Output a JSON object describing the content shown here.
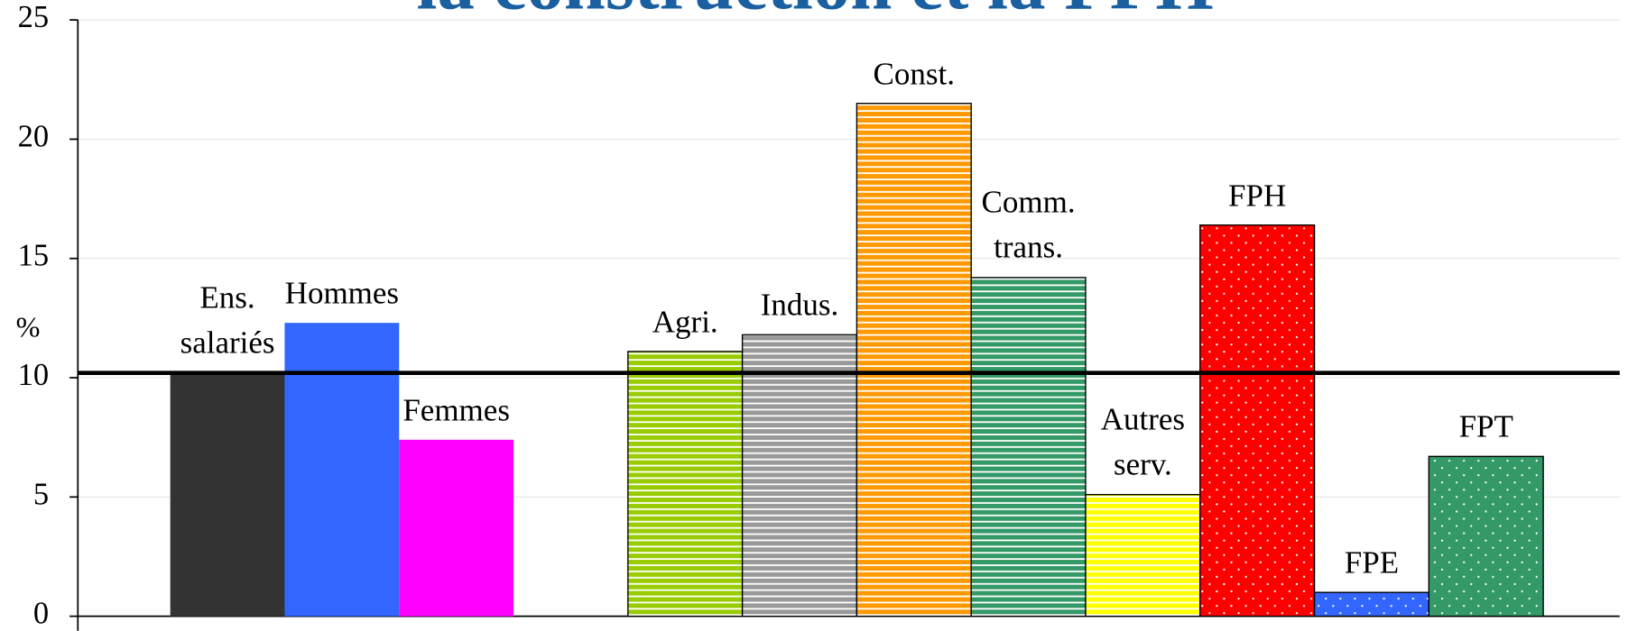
{
  "chart_data": {
    "type": "bar",
    "title": "la construction et la FPH",
    "y_label": "%",
    "categories": [
      "Ens.\nsalariés",
      "Hommes",
      "Femmes",
      null,
      "Agri.",
      "Indus.",
      "Const.",
      "Comm.\ntrans.",
      "Autres\nserv.",
      "FPH",
      "FPE",
      "FPT"
    ],
    "values": [
      10.2,
      12.3,
      7.4,
      null,
      11.1,
      11.8,
      21.5,
      14.2,
      5.1,
      16.4,
      1.0,
      6.7
    ],
    "colors": [
      "#333333",
      "#3366ff",
      "#ff00ff",
      null,
      "#99cc00",
      "#999999",
      "#ff9900",
      "#339966",
      "#ffff00",
      "#ff0000",
      "#3366ff",
      "#339966"
    ],
    "patterns": [
      "solid",
      "solid",
      "solid",
      null,
      "stripes",
      "stripes",
      "stripes",
      "stripes",
      "stripes",
      "dots",
      "dots",
      "dots"
    ],
    "reference_line": 10.2,
    "ylim": [
      0,
      25
    ],
    "yticks": [
      0,
      5,
      10,
      15,
      20,
      25
    ],
    "grid": true
  }
}
